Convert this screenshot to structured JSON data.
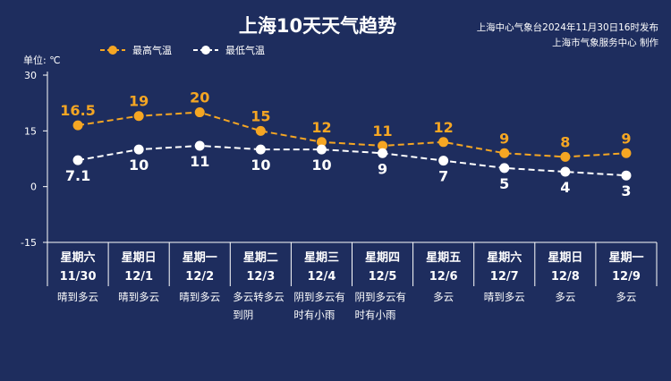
{
  "header": {
    "title": "上海10天天气趋势",
    "source_line1": "上海中心气象台2024年11月30日16时发布",
    "source_line2": "上海市气象服务中心 制作",
    "unit": "单位: ℃"
  },
  "colors": {
    "background": "#1e2d5e",
    "high": "#f5a623",
    "low": "#ffffff"
  },
  "chart_data": {
    "type": "line",
    "title": "上海10天天气趋势",
    "ylabel": "单位: ℃",
    "ylim": [
      -15,
      30
    ],
    "yticks": [
      30,
      15,
      0,
      -15
    ],
    "grid": false,
    "legend_position": "top-left",
    "days": [
      "星期六",
      "星期日",
      "星期一",
      "星期二",
      "星期三",
      "星期四",
      "星期五",
      "星期六",
      "星期日",
      "星期一"
    ],
    "dates": [
      "11/30",
      "12/1",
      "12/2",
      "12/3",
      "12/4",
      "12/5",
      "12/6",
      "12/7",
      "12/8",
      "12/9"
    ],
    "weather": [
      [
        "晴到多云"
      ],
      [
        "晴到多云"
      ],
      [
        "晴到多云"
      ],
      [
        "多云转多云",
        "到阴"
      ],
      [
        "阴到多云有",
        "时有小雨"
      ],
      [
        "阴到多云有",
        "时有小雨"
      ],
      [
        "多云"
      ],
      [
        "晴到多云"
      ],
      [
        "多云"
      ],
      [
        "多云"
      ]
    ],
    "series": [
      {
        "name": "最高气温",
        "values": [
          16.5,
          19,
          20,
          15,
          12,
          11,
          12,
          9,
          8,
          9
        ],
        "labels": [
          "16.5",
          "19",
          "20",
          "15",
          "12",
          "11",
          "12",
          "9",
          "8",
          "9"
        ]
      },
      {
        "name": "最低气温",
        "values": [
          7.1,
          10,
          11,
          10,
          10,
          9,
          7,
          5,
          4,
          3
        ],
        "labels": [
          "7.1",
          "10",
          "11",
          "10",
          "10",
          "9",
          "7",
          "5",
          "4",
          "3"
        ]
      }
    ]
  }
}
